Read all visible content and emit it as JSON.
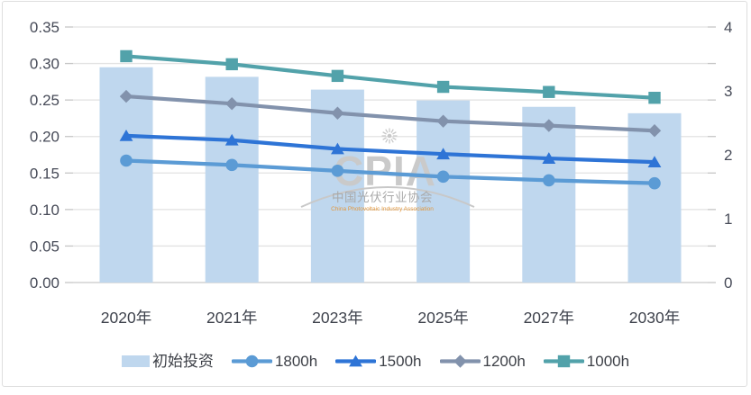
{
  "watermark": {
    "logo_text": "CPIA",
    "cn_text": "中国光伏行业协会",
    "en_text": "China Photovoltaic Industry Association",
    "logo_color": "#CACACA",
    "arc_color": "#C8C8C8",
    "sun_color": "#C8C8C8",
    "cn_color": "#A9A9A9",
    "en_color": "#E2973C"
  },
  "chart_data": {
    "type": "bar+line",
    "title": "",
    "categories": [
      "2020年",
      "2021年",
      "2023年",
      "2025年",
      "2027年",
      "2030年"
    ],
    "left_axis": {
      "range": [
        0,
        0.35
      ],
      "tick_labels": [
        "0.00",
        "0.05",
        "0.10",
        "0.15",
        "0.20",
        "0.25",
        "0.30",
        "0.35"
      ]
    },
    "right_axis": {
      "range": [
        0,
        4
      ],
      "tick_labels": [
        "0",
        "1",
        "2",
        "3",
        "4"
      ]
    },
    "grid": true,
    "legend_position": "bottom",
    "bar_series": {
      "name": "初始投资",
      "axis": "right",
      "color": "#BFD7EE",
      "values": [
        3.37,
        3.22,
        3.02,
        2.85,
        2.75,
        2.65
      ]
    },
    "line_series": [
      {
        "name": "1800h",
        "axis": "left",
        "marker": "circle",
        "color": "#5B9BD5",
        "values": [
          0.167,
          0.161,
          0.153,
          0.145,
          0.14,
          0.136
        ]
      },
      {
        "name": "1500h",
        "axis": "left",
        "marker": "triangle",
        "color": "#2E74D6",
        "values": [
          0.201,
          0.195,
          0.183,
          0.176,
          0.17,
          0.165
        ]
      },
      {
        "name": "1200h",
        "axis": "left",
        "marker": "diamond",
        "color": "#8292AC",
        "values": [
          0.255,
          0.245,
          0.232,
          0.221,
          0.215,
          0.208
        ]
      },
      {
        "name": "1000h",
        "axis": "left",
        "marker": "square",
        "color": "#52A2AA",
        "values": [
          0.31,
          0.299,
          0.283,
          0.268,
          0.261,
          0.253
        ]
      }
    ],
    "axis_text_color": "#474B58",
    "x_label_color": "#3E424C",
    "grid_color": "#E2E2E2",
    "axis_line_color": "#D4D4D4",
    "tick_color": "#C6C6C6"
  }
}
